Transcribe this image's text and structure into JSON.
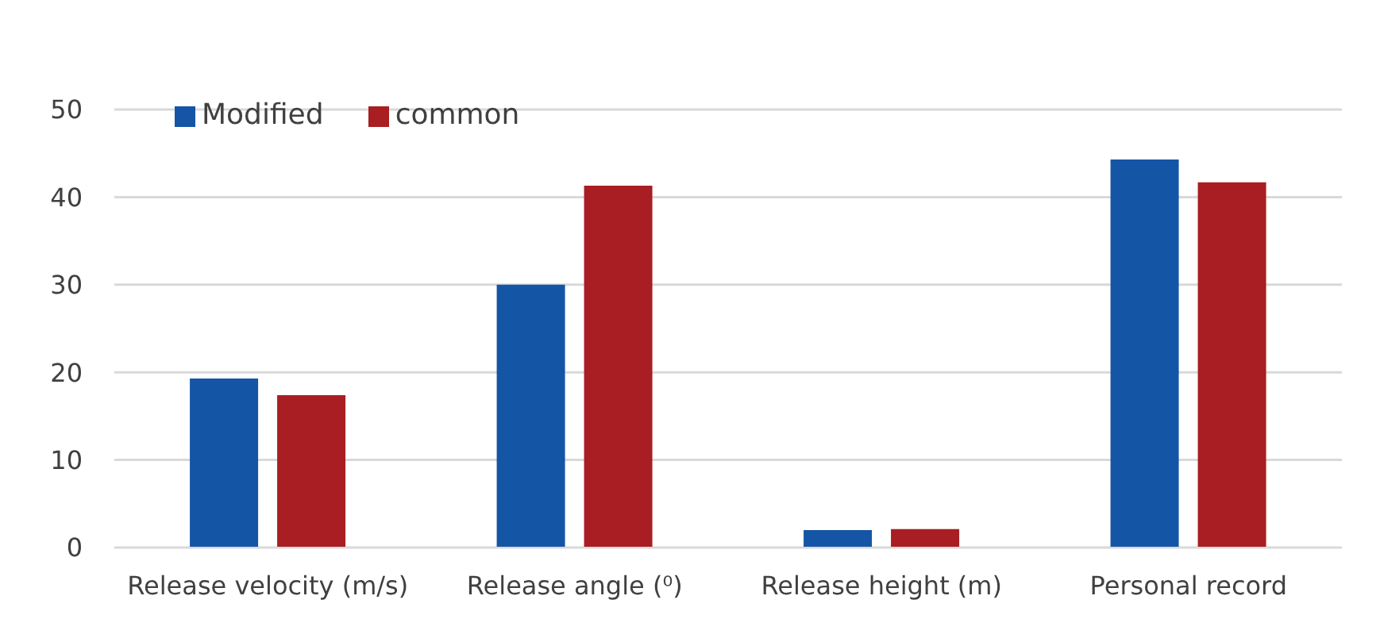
{
  "chart_data": {
    "type": "bar",
    "categories": [
      "Release velocity (m/s)",
      "Release angle (⁰)",
      "Release height (m)",
      "Personal record"
    ],
    "series": [
      {
        "name": "Modified",
        "color": "#1555a5",
        "values": [
          19.3,
          30.0,
          2.0,
          44.3
        ]
      },
      {
        "name": "common",
        "color": "#a81e22",
        "values": [
          17.4,
          41.3,
          2.1,
          41.7
        ]
      }
    ],
    "ylim": [
      0,
      50
    ],
    "yticks": [
      0,
      10,
      20,
      30,
      40,
      50
    ],
    "grid": "y",
    "legend": "top left"
  }
}
